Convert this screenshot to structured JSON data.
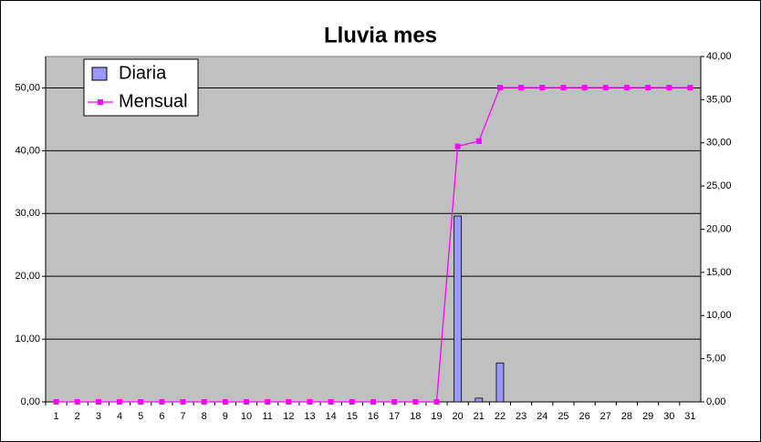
{
  "chart_data": {
    "type": "bar",
    "title": "Lluvia mes",
    "categories": [
      "1",
      "2",
      "3",
      "4",
      "5",
      "6",
      "7",
      "8",
      "9",
      "10",
      "11",
      "12",
      "13",
      "14",
      "15",
      "16",
      "17",
      "18",
      "19",
      "20",
      "21",
      "22",
      "23",
      "24",
      "25",
      "26",
      "27",
      "28",
      "29",
      "30",
      "31"
    ],
    "series": [
      {
        "name": "Diaria",
        "type": "bar",
        "color": "#9999ff",
        "values": [
          0,
          0,
          0,
          0,
          0,
          0,
          0,
          0,
          0,
          0,
          0,
          0,
          0,
          0,
          0,
          0,
          0,
          0,
          0,
          29.6,
          0.6,
          6.2,
          0,
          0,
          0,
          0,
          0,
          0,
          0,
          0,
          0
        ]
      },
      {
        "name": "Mensual",
        "type": "line",
        "axis": "y2",
        "color": "#ff00ff",
        "values": [
          0,
          0,
          0,
          0,
          0,
          0,
          0,
          0,
          0,
          0,
          0,
          0,
          0,
          0,
          0,
          0,
          0,
          0,
          0,
          29.6,
          30.2,
          36.4,
          36.4,
          36.4,
          36.4,
          36.4,
          36.4,
          36.4,
          36.4,
          36.4,
          36.4
        ]
      }
    ],
    "ylim": [
      0,
      55
    ],
    "yticks": [
      {
        "value": 0,
        "label": "0,00"
      },
      {
        "value": 10,
        "label": "10,00"
      },
      {
        "value": 20,
        "label": "20,00"
      },
      {
        "value": 30,
        "label": "30,00"
      },
      {
        "value": 40,
        "label": "40,00"
      },
      {
        "value": 50,
        "label": "50,00"
      }
    ],
    "y2lim": [
      0,
      40
    ],
    "y2ticks": [
      {
        "value": 0,
        "label": "0,00"
      },
      {
        "value": 5,
        "label": "5,00"
      },
      {
        "value": 10,
        "label": "10,00"
      },
      {
        "value": 15,
        "label": "15,00"
      },
      {
        "value": 20,
        "label": "20,00"
      },
      {
        "value": 25,
        "label": "25,00"
      },
      {
        "value": 30,
        "label": "30,00"
      },
      {
        "value": 35,
        "label": "35,00"
      },
      {
        "value": 40,
        "label": "40,00"
      }
    ],
    "grid": true,
    "legend": "top-left"
  }
}
